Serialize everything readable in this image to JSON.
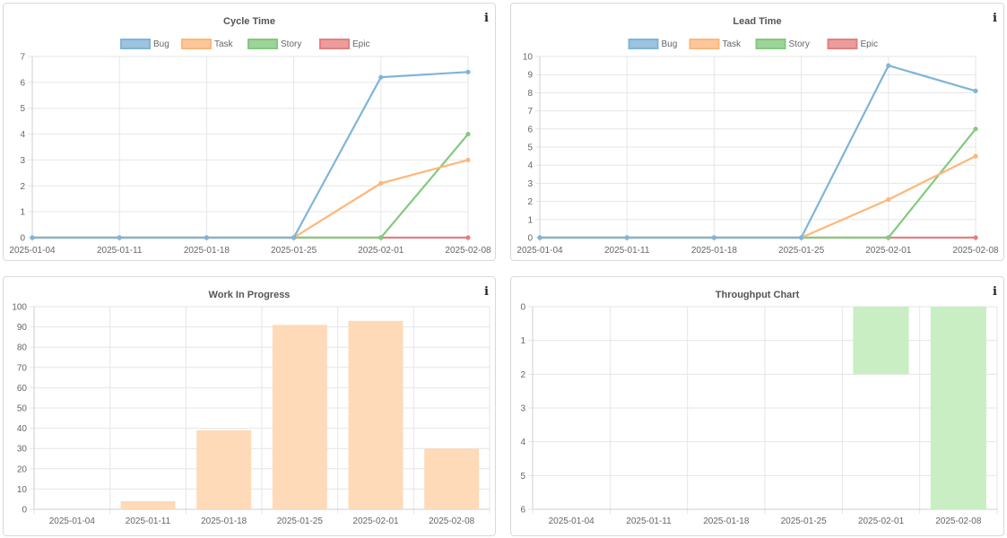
{
  "panels": [
    {
      "key": "cycle",
      "title": "Cycle Time",
      "info_glyph": "i",
      "chart_data": {
        "type": "line",
        "title": "Cycle Time",
        "x": [
          "2025-01-04",
          "2025-01-11",
          "2025-01-18",
          "2025-01-25",
          "2025-02-01",
          "2025-02-08"
        ],
        "ylim": [
          0,
          7
        ],
        "yticks": [
          0,
          1,
          2,
          3,
          4,
          5,
          6,
          7
        ],
        "grid": true,
        "legend": "top",
        "series": [
          {
            "name": "Bug",
            "color": "#7fb5d9",
            "fill": "#9cc3e0",
            "values": [
              0,
              0,
              0,
              0,
              6.2,
              6.4
            ]
          },
          {
            "name": "Task",
            "color": "#fdb77a",
            "fill": "#fec79a",
            "values": [
              0,
              0,
              0,
              0,
              2.1,
              3
            ]
          },
          {
            "name": "Story",
            "color": "#84c97f",
            "fill": "#9dd49a",
            "values": [
              0,
              0,
              0,
              0,
              0,
              4
            ]
          },
          {
            "name": "Epic",
            "color": "#e57f7f",
            "fill": "#ec9c9c",
            "values": [
              0,
              0,
              0,
              0,
              0,
              0
            ]
          }
        ]
      }
    },
    {
      "key": "lead",
      "title": "Lead Time",
      "info_glyph": "i",
      "chart_data": {
        "type": "line",
        "title": "Lead Time",
        "x": [
          "2025-01-04",
          "2025-01-11",
          "2025-01-18",
          "2025-01-25",
          "2025-02-01",
          "2025-02-08"
        ],
        "ylim": [
          0,
          10
        ],
        "yticks": [
          0,
          1,
          2,
          3,
          4,
          5,
          6,
          7,
          8,
          9,
          10
        ],
        "grid": true,
        "legend": "top",
        "series": [
          {
            "name": "Bug",
            "color": "#7fb5d9",
            "fill": "#9cc3e0",
            "values": [
              0,
              0,
              0,
              0,
              9.5,
              8.1
            ]
          },
          {
            "name": "Task",
            "color": "#fdb77a",
            "fill": "#fec79a",
            "values": [
              0,
              0,
              0,
              0,
              2.1,
              4.5
            ]
          },
          {
            "name": "Story",
            "color": "#84c97f",
            "fill": "#9dd49a",
            "values": [
              0,
              0,
              0,
              0,
              0,
              6
            ]
          },
          {
            "name": "Epic",
            "color": "#e57f7f",
            "fill": "#ec9c9c",
            "values": [
              0,
              0,
              0,
              0,
              0,
              0
            ]
          }
        ]
      }
    },
    {
      "key": "wip",
      "title": "Work In Progress",
      "info_glyph": "i",
      "chart_data": {
        "type": "bar",
        "title": "Work In Progress",
        "categories": [
          "2025-01-04",
          "2025-01-11",
          "2025-01-18",
          "2025-01-25",
          "2025-02-01",
          "2025-02-08"
        ],
        "values": [
          0,
          4,
          39,
          91,
          93,
          30
        ],
        "ylim": [
          0,
          100
        ],
        "yticks": [
          0,
          10,
          20,
          30,
          40,
          50,
          60,
          70,
          80,
          90,
          100
        ],
        "reverse": false,
        "grid": true,
        "bar_color": "#fedab8"
      }
    },
    {
      "key": "throughput",
      "title": "Throughput Chart",
      "info_glyph": "i",
      "chart_data": {
        "type": "bar",
        "title": "Throughput Chart",
        "categories": [
          "2025-01-04",
          "2025-01-11",
          "2025-01-18",
          "2025-01-25",
          "2025-02-01",
          "2025-02-08"
        ],
        "values": [
          0,
          0,
          0,
          0,
          2,
          6
        ],
        "ylim": [
          0,
          6
        ],
        "yticks": [
          0,
          1,
          2,
          3,
          4,
          5,
          6
        ],
        "reverse": true,
        "grid": true,
        "bar_color": "#c9eec4"
      }
    }
  ]
}
